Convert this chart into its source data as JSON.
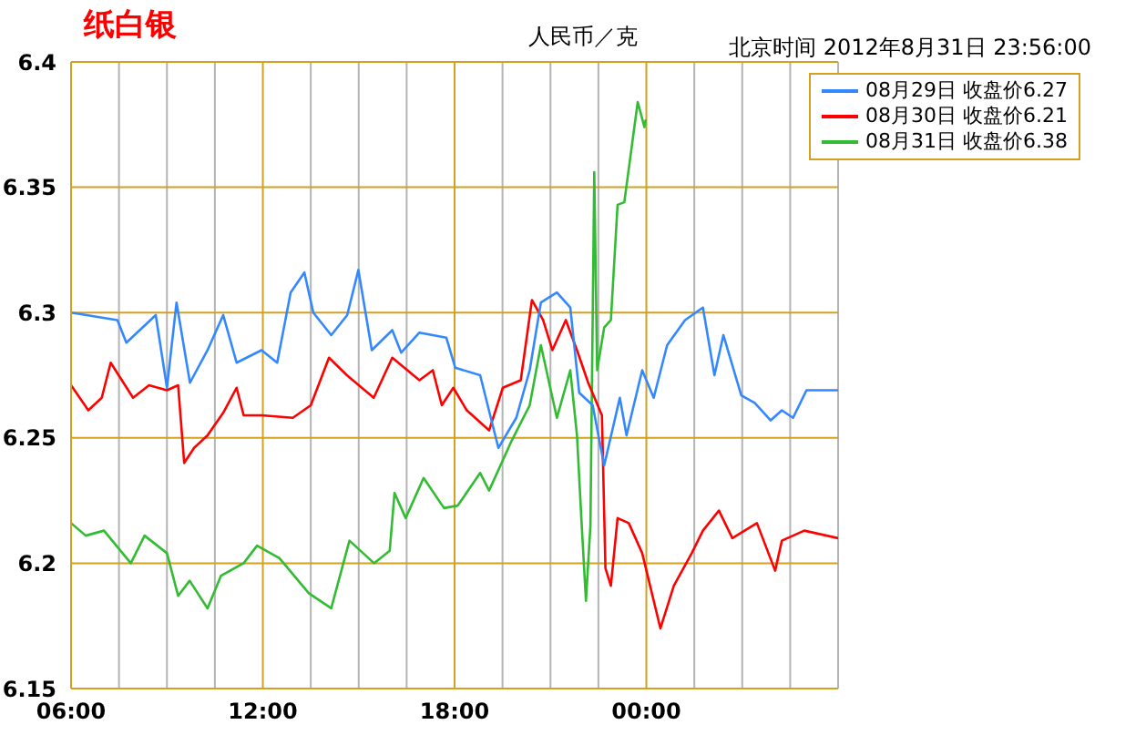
{
  "chart_data": {
    "type": "line",
    "title": "纸白银",
    "annotations": [
      "人民币／克",
      "北京时间 2012年8月31日 23:56:00"
    ],
    "xlim": [
      6,
      30
    ],
    "xticks": [
      {
        "value": 6,
        "label": "06:00"
      },
      {
        "value": 7.5,
        "label": null
      },
      {
        "value": 9,
        "label": null
      },
      {
        "value": 10.5,
        "label": null
      },
      {
        "value": 12,
        "label": "12:00"
      },
      {
        "value": 13.5,
        "label": null
      },
      {
        "value": 15,
        "label": null
      },
      {
        "value": 16.5,
        "label": null
      },
      {
        "value": 18,
        "label": "18:00"
      },
      {
        "value": 19.5,
        "label": null
      },
      {
        "value": 21,
        "label": null
      },
      {
        "value": 22.5,
        "label": null
      },
      {
        "value": 24,
        "label": "00:00"
      },
      {
        "value": 25.5,
        "label": null
      },
      {
        "value": 27,
        "label": null
      },
      {
        "value": 28.5,
        "label": null
      },
      {
        "value": 30,
        "label": null
      }
    ],
    "ylim": [
      6.15,
      6.4
    ],
    "yticks": [
      6.15,
      6.2,
      6.25,
      6.3,
      6.35,
      6.4
    ],
    "grid": true,
    "legend": "top right",
    "marker": "none",
    "line_style": "solid",
    "series": [
      {
        "name": "08月31日 收盘价6.38",
        "color": "#33bb33",
        "x": [
          6,
          6.46,
          7.03,
          7.87,
          8.3,
          9,
          9.35,
          9.71,
          10.27,
          10.69,
          11.4,
          11.82,
          12.52,
          13.44,
          14.14,
          14.71,
          15.48,
          15.97,
          16.12,
          16.47,
          17.03,
          17.67,
          18.1,
          18.8,
          19.08,
          19.79,
          20.35,
          20.7,
          21.2,
          21.62,
          21.83,
          21.97,
          22.11,
          22.25,
          22.37,
          22.46,
          22.68,
          22.89,
          23.1,
          23.31,
          23.52,
          23.73,
          23.94,
          23.98
        ],
        "values": [
          6.216,
          6.211,
          6.213,
          6.2,
          6.211,
          6.204,
          6.187,
          6.193,
          6.182,
          6.195,
          6.2,
          6.207,
          6.202,
          6.188,
          6.182,
          6.209,
          6.2,
          6.205,
          6.228,
          6.218,
          6.234,
          6.222,
          6.223,
          6.236,
          6.229,
          6.249,
          6.263,
          6.287,
          6.258,
          6.277,
          6.251,
          6.217,
          6.185,
          6.215,
          6.356,
          6.277,
          6.294,
          6.297,
          6.343,
          6.344,
          6.364,
          6.384,
          6.374,
          6.377
        ]
      },
      {
        "name": "08月30日 收盘价6.21",
        "color": "#ff0000",
        "x": [
          6,
          6.54,
          6.96,
          7.24,
          7.94,
          8.44,
          9,
          9.35,
          9.54,
          9.85,
          10.27,
          10.76,
          11.18,
          11.4,
          11.96,
          12.94,
          13.5,
          14.07,
          14.63,
          15.47,
          16.05,
          16.9,
          17.32,
          17.6,
          17.96,
          18.38,
          19.08,
          19.51,
          20.07,
          20.42,
          20.77,
          21.06,
          21.48,
          21.83,
          22.18,
          22.61,
          22.72,
          22.89,
          23.1,
          23.45,
          23.87,
          24.44,
          24.86,
          25.42,
          25.77,
          26.27,
          26.69,
          27.46,
          28.03,
          28.24,
          28.94,
          30
        ],
        "values": [
          6.271,
          6.261,
          6.266,
          6.28,
          6.266,
          6.271,
          6.269,
          6.271,
          6.24,
          6.246,
          6.251,
          6.26,
          6.27,
          6.259,
          6.259,
          6.258,
          6.263,
          6.282,
          6.275,
          6.266,
          6.282,
          6.273,
          6.277,
          6.263,
          6.27,
          6.261,
          6.253,
          6.27,
          6.273,
          6.305,
          6.297,
          6.285,
          6.297,
          6.285,
          6.272,
          6.259,
          6.198,
          6.191,
          6.218,
          6.216,
          6.204,
          6.174,
          6.191,
          6.204,
          6.213,
          6.221,
          6.21,
          6.216,
          6.197,
          6.209,
          6.213,
          6.21
        ]
      },
      {
        "name": "08月29日 收盘价6.27",
        "color": "#3388ff",
        "x": [
          6,
          7.45,
          7.73,
          8.65,
          9,
          9.3,
          9.72,
          10.27,
          10.76,
          11.18,
          11.96,
          12.45,
          12.87,
          13.3,
          13.58,
          14.14,
          14.64,
          14.99,
          15.41,
          16.05,
          16.33,
          16.9,
          17.74,
          18.02,
          18.8,
          19.37,
          19.93,
          20.35,
          20.7,
          21.2,
          21.62,
          21.9,
          22.32,
          22.68,
          23.17,
          23.38,
          23.87,
          24.23,
          24.65,
          25.21,
          25.77,
          26.13,
          26.41,
          26.97,
          27.39,
          27.89,
          28.24,
          28.59,
          29.01,
          30
        ],
        "values": [
          6.3,
          6.297,
          6.288,
          6.299,
          6.27,
          6.304,
          6.272,
          6.285,
          6.299,
          6.28,
          6.285,
          6.28,
          6.308,
          6.316,
          6.3,
          6.291,
          6.299,
          6.317,
          6.285,
          6.293,
          6.284,
          6.292,
          6.29,
          6.278,
          6.275,
          6.246,
          6.258,
          6.277,
          6.304,
          6.308,
          6.302,
          6.268,
          6.263,
          6.239,
          6.266,
          6.251,
          6.277,
          6.266,
          6.287,
          6.297,
          6.302,
          6.275,
          6.291,
          6.267,
          6.264,
          6.257,
          6.261,
          6.258,
          6.269,
          6.269
        ]
      }
    ]
  }
}
